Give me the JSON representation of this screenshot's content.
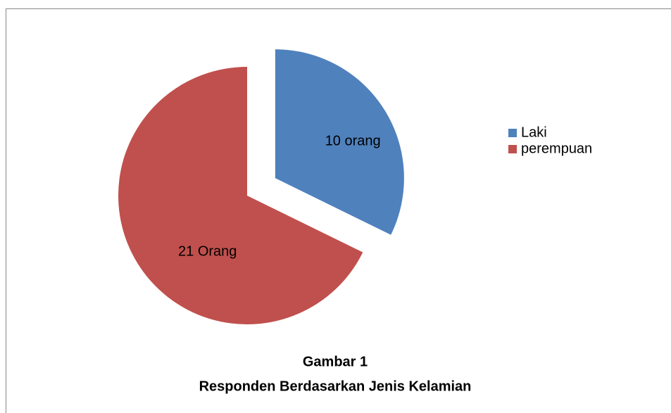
{
  "chart_data": {
    "type": "pie",
    "title": "Gambar 1",
    "subtitle": "Responden Berdasarkan Jenis Kelamian",
    "categories": [
      "Laki",
      "perempuan"
    ],
    "values": [
      10,
      21
    ],
    "value_labels": [
      "10 orang",
      "21 Orang"
    ],
    "colors": [
      "#4f81bd",
      "#c0504d"
    ],
    "explode": [
      true,
      false
    ],
    "legend": "right"
  }
}
